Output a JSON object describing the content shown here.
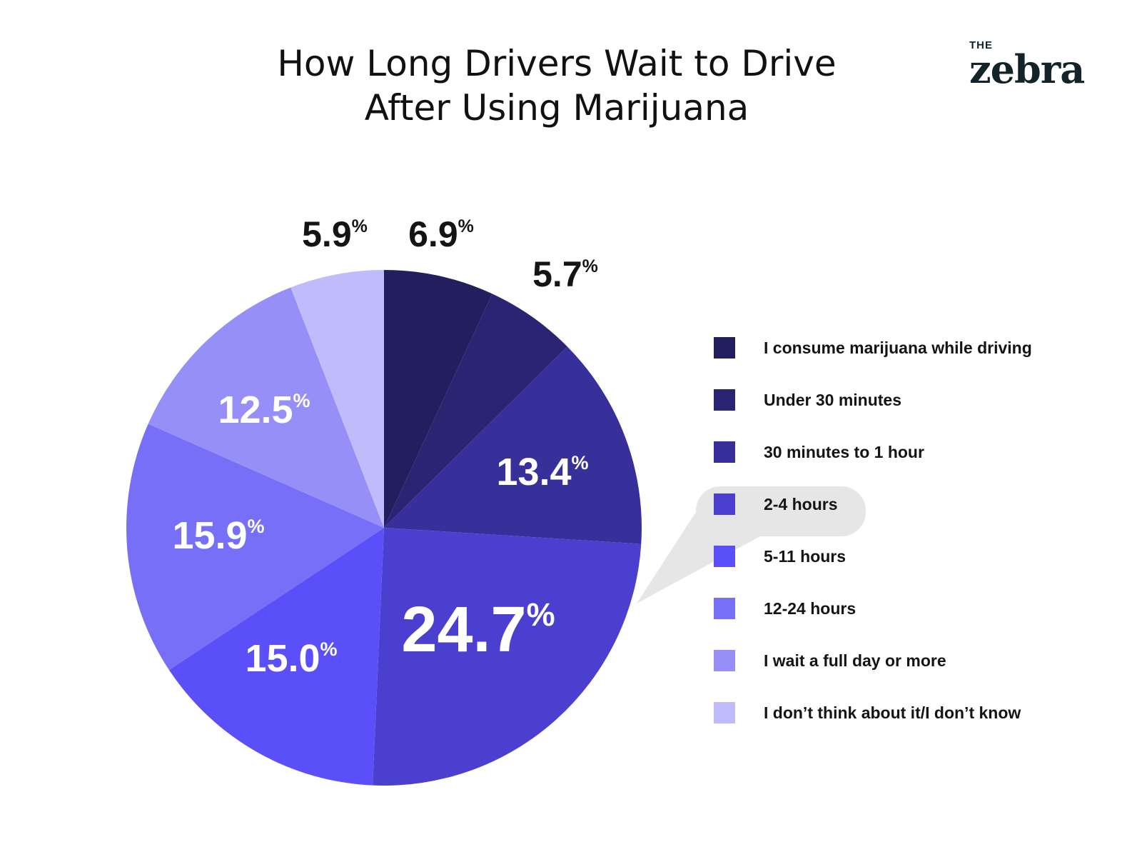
{
  "header": {
    "title_line1": "How Long Drivers Wait to Drive",
    "title_line2": "After Using Marijuana",
    "logo_small": "THE",
    "logo_word": "zebra"
  },
  "chart_data": {
    "type": "pie",
    "title": "How Long Drivers Wait to Drive After Using Marijuana",
    "unit": "%",
    "legend_position": "right",
    "highlighted": "2-4 hours",
    "slices": [
      {
        "label": "I consume marijuana while driving",
        "value": 6.9,
        "display": "6.9",
        "color": "#221f5f"
      },
      {
        "label": "Under 30 minutes",
        "value": 5.7,
        "display": "5.7",
        "color": "#2b2472"
      },
      {
        "label": "30 minutes to 1 hour",
        "value": 13.4,
        "display": "13.4",
        "color": "#37309b"
      },
      {
        "label": "2-4 hours",
        "value": 24.7,
        "display": "24.7",
        "color": "#4a3fce"
      },
      {
        "label": "5-11 hours",
        "value": 15.0,
        "display": "15.0",
        "color": "#5a4ff9"
      },
      {
        "label": "12-24 hours",
        "value": 15.9,
        "display": "15.9",
        "color": "#786ff8"
      },
      {
        "label": "I wait a full day or more",
        "value": 12.5,
        "display": "12.5",
        "color": "#968ff7"
      },
      {
        "label": "I don’t think about it/I don’t know",
        "value": 5.9,
        "display": "5.9",
        "color": "#c0bcfb"
      }
    ]
  }
}
